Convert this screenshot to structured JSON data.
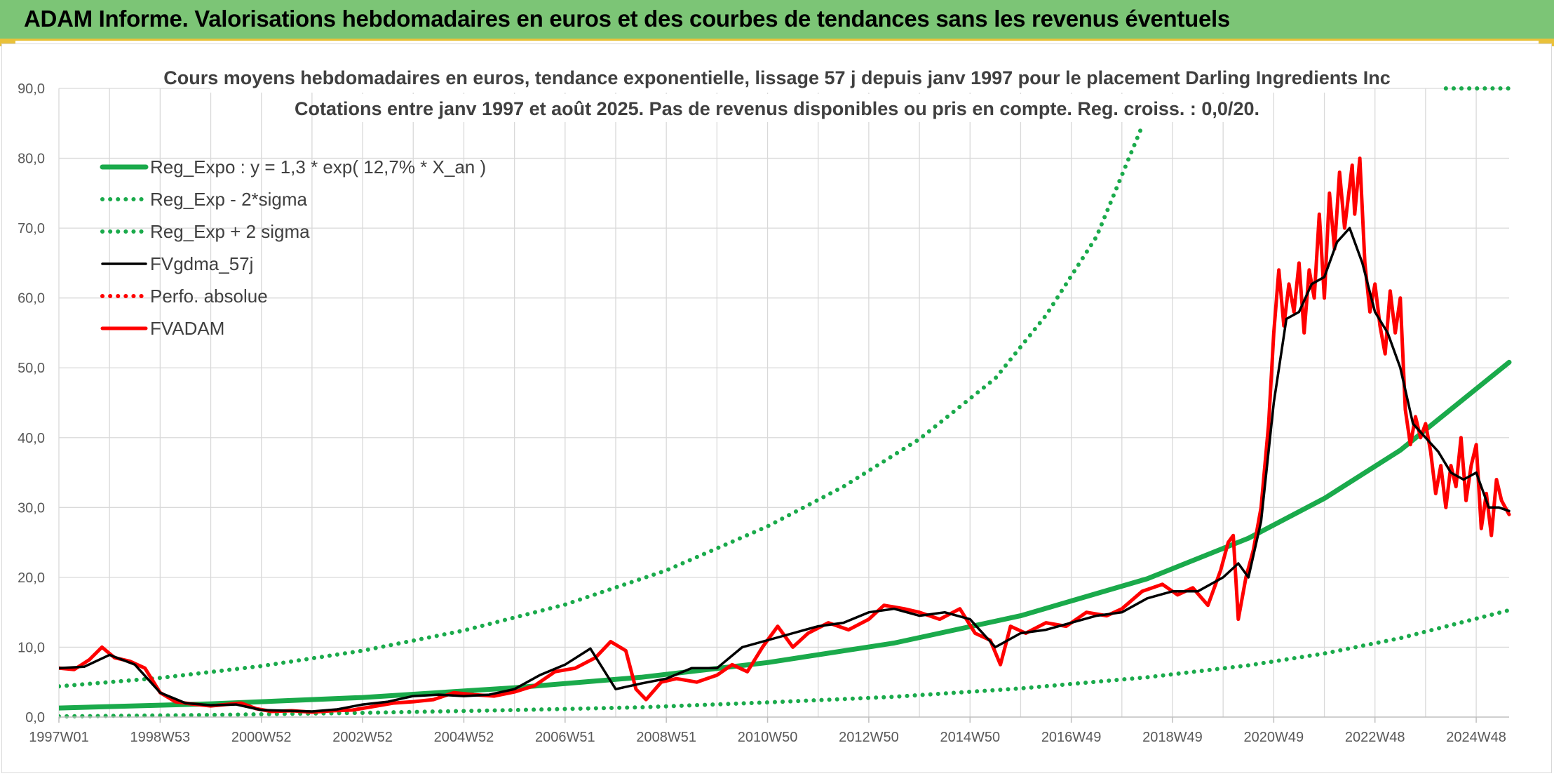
{
  "header": {
    "title": "ADAM Informe. Valorisations hebdomadaires en euros et des courbes de tendances sans les revenus éventuels"
  },
  "colors": {
    "header_bg": "#7cc576",
    "accent_border": "#e9c13a",
    "trend_green": "#1aaa4b",
    "price_red": "#ff0000",
    "smooth_black": "#000000",
    "grid": "#d9d9d9"
  },
  "chart_data": {
    "type": "line",
    "title": "Cours moyens hebdomadaires en euros, tendance exponentielle, lissage 57 j depuis janv 1997 pour le placement Darling Ingredients Inc",
    "subtitle": "Cotations entre janv 1997 et août 2025. Pas de revenus disponibles ou pris en compte. Reg. croiss. : 0,0/20.",
    "xlabel": "",
    "ylabel": "",
    "x_range": [
      1997.0,
      2025.65
    ],
    "ylim": [
      0,
      90
    ],
    "y_ticks": [
      "0,0",
      "10,0",
      "20,0",
      "30,0",
      "40,0",
      "50,0",
      "60,0",
      "70,0",
      "80,0",
      "90,0"
    ],
    "x_tick_labels": [
      "1997W01",
      "1998W53",
      "2000W52",
      "2002W52",
      "2004W52",
      "2006W51",
      "2008W51",
      "2010W50",
      "2012W50",
      "2014W50",
      "2016W49",
      "2018W49",
      "2020W49",
      "2022W48",
      "2024W48"
    ],
    "x_tick_positions": [
      1997.0,
      1999.0,
      2001.0,
      2003.0,
      2005.0,
      2007.0,
      2009.0,
      2011.0,
      2013.0,
      2015.0,
      2017.0,
      2019.0,
      2021.0,
      2023.0,
      2025.0
    ],
    "grid": true,
    "legend_position": "top-left",
    "legend": [
      "Reg_Expo : y = 1,3 * exp( 12,7% *  X_an )",
      "Reg_Exp - 2*sigma",
      "Reg_Exp + 2 sigma",
      "FVgdma_57j",
      "Perfo. absolue",
      "FVADAM"
    ],
    "series": [
      {
        "name": "Reg_Expo : y = 1,3 * exp( 12,7% *  X_an )",
        "style": "solid",
        "color": "#1aaa4b",
        "x": [
          1997.0,
          2000.0,
          2003.0,
          2006.0,
          2008.5,
          2011.0,
          2013.5,
          2016.0,
          2018.5,
          2020.5,
          2022.0,
          2023.5,
          2025.65
        ],
        "values": [
          1.3,
          1.9,
          2.8,
          4.2,
          5.7,
          7.8,
          10.6,
          14.5,
          19.8,
          25.6,
          31.3,
          38.2,
          50.8
        ]
      },
      {
        "name": "Reg_Exp - 2*sigma",
        "style": "dotted",
        "color": "#1aaa4b",
        "x": [
          1997.0,
          2000.0,
          2003.0,
          2006.0,
          2008.5,
          2011.0,
          2013.5,
          2016.0,
          2018.5,
          2020.5,
          2022.0,
          2023.5,
          2025.65
        ],
        "values": [
          0.1,
          0.3,
          0.6,
          1.0,
          1.4,
          2.1,
          2.9,
          4.1,
          5.7,
          7.4,
          9.1,
          11.3,
          15.3
        ]
      },
      {
        "name": "Reg_Exp + 2 sigma",
        "style": "dotted",
        "color": "#1aaa4b",
        "x": [
          1997.0,
          1999.0,
          2001.0,
          2003.0,
          2005.0,
          2007.0,
          2009.0,
          2011.0,
          2012.5,
          2014.0,
          2015.5,
          2016.5,
          2017.5,
          2018.4
        ],
        "values": [
          4.4,
          5.6,
          7.3,
          9.5,
          12.4,
          16.1,
          21.0,
          27.3,
          33.0,
          39.8,
          48.5,
          57.5,
          68.8,
          84.6
        ],
        "extra_segment": {
          "x": [
            2024.4,
            2025.65
          ],
          "values": [
            90.0,
            90.0
          ]
        }
      },
      {
        "name": "FVgdma_57j",
        "style": "solid",
        "color": "#000000",
        "x": [
          1997.0,
          1997.5,
          1998.0,
          1998.5,
          1999.0,
          1999.5,
          2000.0,
          2000.5,
          2001.0,
          2001.5,
          2002.0,
          2002.5,
          2003.0,
          2003.5,
          2004.0,
          2004.5,
          2005.0,
          2005.5,
          2006.0,
          2006.5,
          2007.0,
          2007.5,
          2008.0,
          2008.5,
          2009.0,
          2009.5,
          2010.0,
          2010.5,
          2011.0,
          2011.5,
          2012.0,
          2012.5,
          2013.0,
          2013.5,
          2014.0,
          2014.5,
          2015.0,
          2015.5,
          2016.0,
          2016.5,
          2017.0,
          2017.5,
          2018.0,
          2018.5,
          2019.0,
          2019.5,
          2020.0,
          2020.3,
          2020.5,
          2020.75,
          2021.0,
          2021.25,
          2021.5,
          2021.75,
          2022.0,
          2022.25,
          2022.5,
          2022.75,
          2023.0,
          2023.25,
          2023.5,
          2023.75,
          2024.0,
          2024.25,
          2024.5,
          2024.75,
          2025.0,
          2025.25,
          2025.45,
          2025.65
        ],
        "values": [
          7.0,
          7.2,
          8.9,
          7.5,
          3.5,
          2.0,
          1.7,
          1.8,
          1.0,
          0.9,
          0.8,
          1.1,
          1.8,
          2.2,
          3.0,
          3.2,
          3.0,
          3.2,
          4.0,
          6.0,
          7.5,
          9.8,
          4.0,
          4.8,
          5.5,
          7.0,
          7.0,
          10.0,
          11.0,
          12.0,
          13.0,
          13.5,
          15.0,
          15.5,
          14.5,
          15.0,
          14.0,
          10.0,
          12.0,
          12.5,
          13.5,
          14.5,
          15.0,
          17.0,
          18.0,
          18.0,
          20.0,
          22.0,
          20.0,
          28.0,
          45.0,
          57.0,
          58.0,
          62.0,
          63.0,
          68.0,
          70.0,
          65.0,
          58.0,
          55.0,
          50.0,
          42.0,
          40.0,
          38.0,
          35.0,
          34.0,
          35.0,
          30.0,
          30.0,
          29.5
        ]
      },
      {
        "name": "Perfo. absolue",
        "style": "dotted",
        "color": "#ff0000",
        "x": [],
        "values": []
      },
      {
        "name": "FVADAM",
        "style": "solid",
        "color": "#ff0000",
        "x": [
          1997.0,
          1997.3,
          1997.6,
          1997.85,
          1998.1,
          1998.4,
          1998.7,
          1999.0,
          1999.3,
          1999.6,
          2000.0,
          2000.3,
          2000.6,
          2000.9,
          2001.2,
          2001.6,
          2002.0,
          2002.4,
          2002.8,
          2003.2,
          2003.6,
          2004.0,
          2004.4,
          2004.8,
          2005.2,
          2005.6,
          2006.0,
          2006.4,
          2006.8,
          2007.2,
          2007.6,
          2007.9,
          2008.2,
          2008.4,
          2008.6,
          2008.9,
          2009.2,
          2009.6,
          2010.0,
          2010.3,
          2010.6,
          2010.9,
          2011.2,
          2011.5,
          2011.8,
          2012.2,
          2012.6,
          2013.0,
          2013.3,
          2013.7,
          2014.0,
          2014.4,
          2014.8,
          2015.1,
          2015.4,
          2015.6,
          2015.8,
          2016.1,
          2016.5,
          2016.9,
          2017.3,
          2017.7,
          2018.0,
          2018.4,
          2018.8,
          2019.1,
          2019.4,
          2019.7,
          2019.95,
          2020.1,
          2020.2,
          2020.3,
          2020.45,
          2020.6,
          2020.75,
          2020.9,
          2021.0,
          2021.1,
          2021.2,
          2021.3,
          2021.4,
          2021.5,
          2021.6,
          2021.7,
          2021.8,
          2021.9,
          2022.0,
          2022.1,
          2022.2,
          2022.3,
          2022.4,
          2022.5,
          2022.55,
          2022.6,
          2022.7,
          2022.8,
          2022.9,
          2023.0,
          2023.1,
          2023.2,
          2023.3,
          2023.4,
          2023.5,
          2023.6,
          2023.7,
          2023.8,
          2023.9,
          2024.0,
          2024.1,
          2024.2,
          2024.3,
          2024.4,
          2024.5,
          2024.6,
          2024.7,
          2024.8,
          2024.9,
          2025.0,
          2025.1,
          2025.2,
          2025.3,
          2025.4,
          2025.5,
          2025.65
        ],
        "values": [
          7.0,
          6.8,
          8.2,
          10.0,
          8.5,
          8.0,
          7.0,
          3.5,
          2.2,
          1.9,
          1.6,
          1.8,
          2.0,
          1.2,
          0.8,
          0.9,
          0.7,
          0.9,
          1.0,
          1.5,
          2.0,
          2.2,
          2.5,
          3.5,
          3.2,
          3.0,
          3.6,
          4.5,
          6.5,
          7.0,
          8.5,
          10.8,
          9.5,
          4.0,
          2.5,
          5.0,
          5.5,
          5.0,
          6.0,
          7.5,
          6.5,
          10.0,
          13.0,
          10.0,
          12.0,
          13.5,
          12.5,
          14.0,
          16.0,
          15.5,
          15.0,
          14.0,
          15.5,
          12.0,
          11.0,
          7.5,
          13.0,
          12.0,
          13.5,
          13.0,
          15.0,
          14.5,
          15.5,
          18.0,
          19.0,
          17.5,
          18.5,
          16.0,
          21.0,
          25.0,
          26.0,
          14.0,
          20.0,
          24.0,
          30.0,
          42.0,
          55.0,
          64.0,
          56.0,
          62.0,
          58.0,
          65.0,
          55.0,
          64.0,
          60.0,
          72.0,
          60.0,
          75.0,
          67.0,
          78.0,
          70.0,
          76.0,
          79.0,
          72.0,
          80.0,
          65.0,
          58.0,
          62.0,
          56.0,
          52.0,
          61.0,
          55.0,
          60.0,
          44.0,
          39.0,
          43.0,
          40.0,
          42.0,
          38.0,
          32.0,
          36.0,
          30.0,
          36.0,
          33.0,
          40.0,
          31.0,
          36.0,
          39.0,
          27.0,
          32.0,
          26.0,
          34.0,
          31.0,
          29.0
        ]
      }
    ]
  }
}
